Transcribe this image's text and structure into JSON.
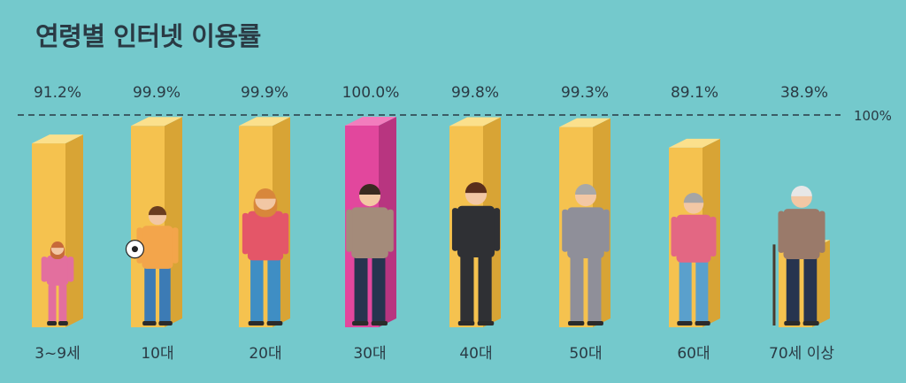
{
  "chart_data": {
    "type": "bar",
    "title": "연령별 인터넷 이용률",
    "categories": [
      "3~9세",
      "10대",
      "20대",
      "30대",
      "40대",
      "50대",
      "60대",
      "70세 이상"
    ],
    "values": [
      91.2,
      99.9,
      99.9,
      100.0,
      99.8,
      99.3,
      89.1,
      38.9
    ],
    "value_labels": [
      "91.2%",
      "99.9%",
      "99.9%",
      "100.0%",
      "99.8%",
      "99.3%",
      "89.1%",
      "38.9%"
    ],
    "reference_line": {
      "value": 100,
      "label": "100%",
      "style": "dashed"
    },
    "ylim": [
      0,
      100
    ],
    "grid": false,
    "legend": "none",
    "highlight_index": 3
  },
  "colors": {
    "background": "#74c9cc",
    "bar_front": "#f5c24f",
    "bar_side": "#d8a435",
    "bar_top": "#fbe08c",
    "highlight_front": "#e2479d",
    "highlight_side": "#b83580",
    "highlight_top": "#f27dbd",
    "text": "#2a3a44"
  },
  "figure_icons": [
    "girl-with-teddy-bear-icon",
    "boy-with-soccer-ball-icon",
    "young-woman-icon",
    "man-in-blazer-icon",
    "woman-in-suit-icon",
    "man-with-glasses-icon",
    "older-woman-icon",
    "elderly-man-with-cane-icon"
  ]
}
